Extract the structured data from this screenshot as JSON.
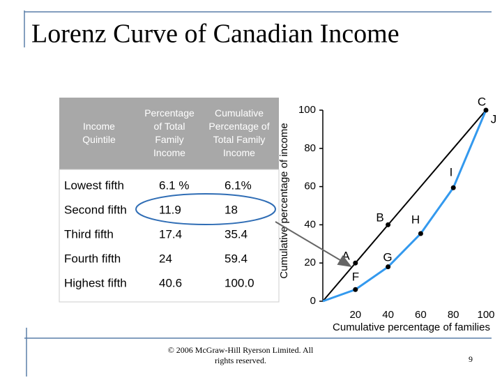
{
  "title": "Lorenz Curve of Canadian  Income",
  "table": {
    "header": [
      [
        "Income",
        "Quintile"
      ],
      [
        "Percentage",
        "of Total",
        "Family",
        "Income"
      ],
      [
        "Cumulative",
        "Percentage of",
        "Total Family",
        "Income"
      ]
    ],
    "rows": [
      [
        "Lowest fifth",
        "6.1 %",
        "6.1%"
      ],
      [
        "Second fifth",
        "11.9",
        "18"
      ],
      [
        "Third fifth",
        "17.4",
        "35.4"
      ],
      [
        "Fourth fifth",
        "24",
        "59.4"
      ],
      [
        "Highest fifth",
        "40.6",
        "100.0"
      ]
    ]
  },
  "chart_data": {
    "type": "line",
    "x_label": "Cumulative percentage of families",
    "y_label": "Cumulative percentage of income",
    "x": [
      0,
      20,
      40,
      60,
      80,
      100
    ],
    "series": [
      {
        "color": "#000000",
        "values": [
          0,
          20,
          40,
          60,
          80,
          100
        ]
      },
      {
        "color": "#3399ee",
        "values": [
          0,
          6.1,
          18,
          35.4,
          59.4,
          100
        ]
      }
    ],
    "xlim": [
      0,
      100
    ],
    "ylim": [
      0,
      100
    ],
    "xticks": [
      20,
      40,
      60,
      80,
      100
    ],
    "yticks": [
      0,
      20,
      40,
      60,
      80,
      100
    ],
    "annotations": [
      "A",
      "B",
      "C",
      "F",
      "G",
      "H",
      "I",
      "J"
    ]
  },
  "footer": {
    "copyright": [
      "© 2006 McGraw-Hill Ryerson Limited. All",
      "rights reserved."
    ],
    "page": "9"
  }
}
